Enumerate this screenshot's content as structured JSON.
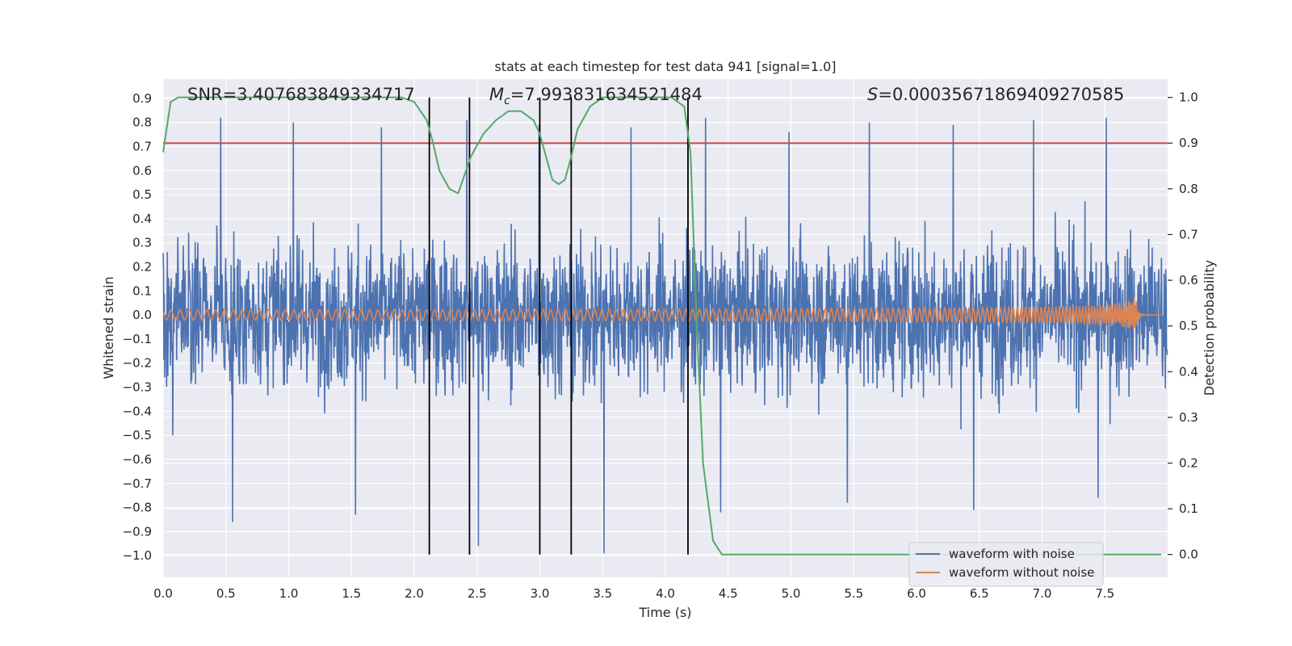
{
  "chart_data": {
    "type": "line",
    "title": "stats at each timestep for test data 941 [signal=1.0]",
    "xlabel": "Time (s)",
    "ylabel": "Whitened strain",
    "y2label": "Detection probability",
    "xlim": [
      0.0,
      8.0
    ],
    "ylim": [
      -1.09,
      0.98
    ],
    "y2lim": [
      -0.05,
      1.04
    ],
    "x_ticks": [
      "0.0",
      "0.5",
      "1.0",
      "1.5",
      "2.0",
      "2.5",
      "3.0",
      "3.5",
      "4.0",
      "4.5",
      "5.0",
      "5.5",
      "6.0",
      "6.5",
      "7.0",
      "7.5"
    ],
    "y_ticks": [
      "0.9",
      "0.8",
      "0.7",
      "0.6",
      "0.5",
      "0.4",
      "0.3",
      "0.2",
      "0.1",
      "0.0",
      "−0.1",
      "−0.2",
      "−0.3",
      "−0.4",
      "−0.5",
      "−0.6",
      "−0.7",
      "−0.8",
      "−0.9",
      "−1.0"
    ],
    "y2_ticks": [
      "1.0",
      "0.9",
      "0.8",
      "0.7",
      "0.6",
      "0.5",
      "0.4",
      "0.3",
      "0.2",
      "0.1",
      "0.0"
    ],
    "grid": true,
    "legend": "bottom-right",
    "annotations": {
      "snr": "SNR=3.407683849334717",
      "mc_symbol": "M",
      "mc_sub": "c",
      "mc_value": "=7.993831634521484",
      "s_symbol": "S",
      "s_value": "=0.00035671869409270585"
    },
    "threshold": 0.9,
    "vlines": [
      2.12,
      2.44,
      3.0,
      3.25,
      4.18
    ],
    "series": [
      {
        "name": "waveform with noise",
        "color": "#4c72b0",
        "kind": "noise",
        "envelope_typical": 0.3,
        "peaks_max": [
          0.82,
          0.8,
          0.78,
          0.81,
          0.79,
          0.78,
          0.82,
          0.76,
          0.8,
          0.79,
          0.81,
          0.82
        ],
        "troughs_min": [
          -0.86,
          -0.83,
          -0.96,
          -0.99,
          -0.82,
          -0.78,
          -0.81,
          -0.76
        ]
      },
      {
        "name": "waveform without noise",
        "color": "#dd8452",
        "kind": "chirp",
        "merger_time": 7.75,
        "peak_amplitude": 0.1
      },
      {
        "name": "",
        "color": "#55a868",
        "axis": "right",
        "x": [
          0.0,
          0.06,
          0.12,
          0.3,
          0.6,
          1.0,
          1.5,
          1.9,
          2.0,
          2.1,
          2.15,
          2.2,
          2.28,
          2.35,
          2.45,
          2.55,
          2.65,
          2.75,
          2.85,
          2.95,
          3.0,
          3.05,
          3.1,
          3.15,
          3.2,
          3.25,
          3.3,
          3.4,
          3.5,
          3.7,
          3.9,
          4.05,
          4.15,
          4.2,
          4.25,
          4.3,
          4.38,
          4.45,
          4.6,
          5.0,
          6.0,
          7.0,
          7.95
        ],
        "values": [
          0.88,
          0.99,
          1.0,
          1.0,
          1.0,
          1.0,
          1.0,
          1.0,
          0.99,
          0.95,
          0.9,
          0.84,
          0.8,
          0.79,
          0.87,
          0.92,
          0.95,
          0.97,
          0.97,
          0.95,
          0.92,
          0.87,
          0.82,
          0.81,
          0.82,
          0.87,
          0.93,
          0.98,
          1.0,
          1.0,
          1.0,
          1.0,
          0.98,
          0.88,
          0.5,
          0.2,
          0.03,
          0.0,
          0.0,
          0.0,
          0.0,
          0.0,
          0.0
        ]
      }
    ]
  }
}
